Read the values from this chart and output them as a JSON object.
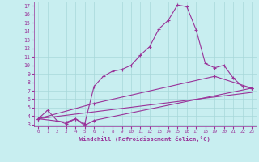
{
  "xlabel": "Windchill (Refroidissement éolien,°C)",
  "bg_color": "#c8eef0",
  "grid_color": "#a8d8da",
  "line_color": "#993399",
  "xlim": [
    -0.5,
    23.5
  ],
  "ylim": [
    2.8,
    17.5
  ],
  "xticks": [
    0,
    1,
    2,
    3,
    4,
    5,
    6,
    7,
    8,
    9,
    10,
    11,
    12,
    13,
    14,
    15,
    16,
    17,
    18,
    19,
    20,
    21,
    22,
    23
  ],
  "yticks": [
    3,
    4,
    5,
    6,
    7,
    8,
    9,
    10,
    11,
    12,
    13,
    14,
    15,
    16,
    17
  ],
  "line1_x": [
    0,
    1,
    2,
    3,
    4,
    5,
    6,
    7,
    8,
    9,
    10,
    11,
    12,
    13,
    14,
    15,
    16,
    17,
    18,
    19,
    20,
    21,
    22,
    23
  ],
  "line1_y": [
    3.7,
    4.7,
    3.5,
    3.1,
    3.7,
    3.1,
    7.5,
    8.7,
    9.3,
    9.5,
    10.0,
    11.2,
    12.2,
    14.3,
    15.3,
    17.1,
    16.9,
    14.2,
    10.2,
    9.7,
    10.0,
    8.5,
    7.5,
    7.3
  ],
  "line2_x": [
    0,
    3,
    4,
    5,
    6,
    23
  ],
  "line2_y": [
    3.7,
    3.3,
    3.7,
    2.9,
    3.5,
    7.3
  ],
  "line3_x": [
    0,
    6,
    19,
    23
  ],
  "line3_y": [
    3.7,
    5.5,
    8.7,
    7.3
  ],
  "line4_x": [
    0,
    23
  ],
  "line4_y": [
    3.7,
    6.8
  ]
}
